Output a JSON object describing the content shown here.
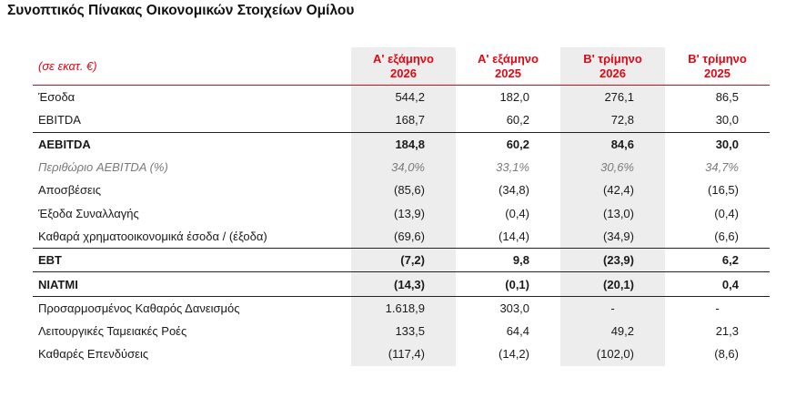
{
  "title": "Συνοπτικός Πίνακας Οικονομικών Στοιχείων Ομίλου",
  "unit_label": "(σε εκατ. €)",
  "columns": [
    {
      "line1": "Α' εξάμηνο",
      "line2": "2026"
    },
    {
      "line1": "Α' εξάμηνο",
      "line2": "2025"
    },
    {
      "line1": "Β' τρίμηνο",
      "line2": "2026"
    },
    {
      "line1": "Β' τρίμηνο",
      "line2": "2025"
    }
  ],
  "rows": [
    {
      "label": "Έσοδα",
      "values": [
        "544,2",
        "182,0",
        "276,1",
        "86,5"
      ],
      "style": "normal"
    },
    {
      "label": "EBITDA",
      "values": [
        "168,7",
        "60,2",
        "72,8",
        "30,0"
      ],
      "style": "normal"
    },
    {
      "label": "AEBITDA",
      "values": [
        "184,8",
        "60,2",
        "84,6",
        "30,0"
      ],
      "style": "bold"
    },
    {
      "label": "Περιθώριο AEBITDA (%)",
      "values": [
        "34,0%",
        "33,1%",
        "30,6%",
        "34,7%"
      ],
      "style": "italic"
    },
    {
      "label": "Αποσβέσεις",
      "values": [
        "(85,6)",
        "(34,8)",
        "(42,4)",
        "(16,5)"
      ],
      "style": "normal"
    },
    {
      "label": "Έξοδα Συναλλαγής",
      "values": [
        "(13,9)",
        "(0,4)",
        "(13,0)",
        "(0,4)"
      ],
      "style": "normal"
    },
    {
      "label": "Καθαρά χρηματοοικονομικά έσοδα / (έξοδα)",
      "values": [
        "(69,6)",
        "(14,4)",
        "(34,9)",
        "(6,6)"
      ],
      "style": "normal"
    },
    {
      "label": "EBT",
      "values": [
        "(7,2)",
        "9,8",
        "(23,9)",
        "6,2"
      ],
      "style": "bold"
    },
    {
      "label": "NIATMI",
      "values": [
        "(14,3)",
        "(0,1)",
        "(20,1)",
        "0,4"
      ],
      "style": "bold"
    },
    {
      "label": "Προσαρμοσμένος Καθαρός Δανεισμός",
      "values": [
        "1.618,9",
        "303,0",
        "-",
        "-"
      ],
      "style": "normal"
    },
    {
      "label": "Λειτουργικές Ταμειακές Ροές",
      "values": [
        "133,5",
        "64,4",
        "49,2",
        "21,3"
      ],
      "style": "normal"
    },
    {
      "label": "Καθαρές Επενδύσεις",
      "values": [
        "(117,4)",
        "(14,2)",
        "(102,0)",
        "(8,6)"
      ],
      "style": "normal"
    }
  ],
  "colors": {
    "accent_red": "#e30613",
    "shade_gray": "#ededed",
    "muted_text": "#7a7a7a"
  }
}
